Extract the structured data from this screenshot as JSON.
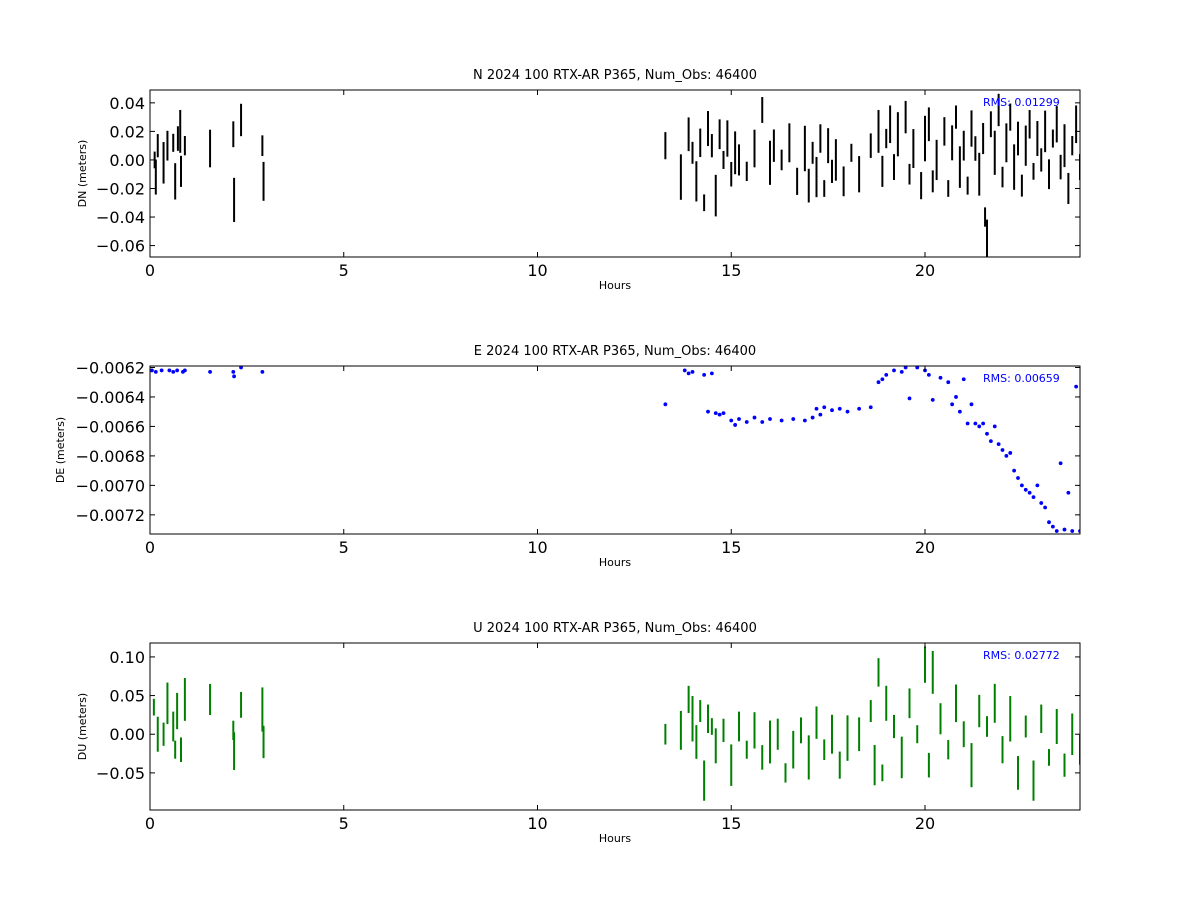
{
  "chart_data": [
    {
      "type": "scatter",
      "title": "N 2024 100 RTX-AR  P365, Num_Obs: 46400",
      "xlabel": "Hours",
      "ylabel": "DN (meters)",
      "xlim": [
        0,
        24
      ],
      "ylim": [
        -0.068,
        0.049
      ],
      "xticks": [
        0,
        5,
        10,
        15,
        20
      ],
      "yticks": [
        0.04,
        0.02,
        0.0,
        -0.02,
        -0.04,
        -0.06
      ],
      "ytick_labels": [
        "0.04",
        "0.02",
        "0.00",
        "−0.02",
        "−0.04",
        "−0.06"
      ],
      "rms_text": "RMS:  0.01299",
      "color": "#000000",
      "marker": "vertical-line",
      "points": [
        [
          0.12,
          0.0
        ],
        [
          0.15,
          -0.012
        ],
        [
          0.2,
          0.01
        ],
        [
          0.35,
          -0.002
        ],
        [
          0.45,
          0.01
        ],
        [
          0.6,
          0.012
        ],
        [
          0.65,
          -0.015
        ],
        [
          0.72,
          0.015
        ],
        [
          0.78,
          0.02
        ],
        [
          0.8,
          -0.008
        ],
        [
          0.9,
          0.01
        ],
        [
          1.55,
          0.008
        ],
        [
          2.15,
          0.018
        ],
        [
          2.17,
          -0.028
        ],
        [
          2.35,
          0.028
        ],
        [
          2.9,
          0.01
        ],
        [
          2.93,
          -0.015
        ],
        [
          13.3,
          0.01
        ],
        [
          13.7,
          -0.012
        ],
        [
          13.9,
          0.018
        ],
        [
          14.0,
          0.005
        ],
        [
          14.1,
          -0.015
        ],
        [
          14.2,
          0.012
        ],
        [
          14.3,
          -0.03
        ],
        [
          14.4,
          0.022
        ],
        [
          14.5,
          0.01
        ],
        [
          14.6,
          -0.025
        ],
        [
          14.7,
          0.018
        ],
        [
          14.8,
          0.0
        ],
        [
          14.9,
          0.015
        ],
        [
          15.0,
          -0.01
        ],
        [
          15.1,
          0.005
        ],
        [
          15.2,
          0.0
        ],
        [
          15.4,
          -0.008
        ],
        [
          15.6,
          0.008
        ],
        [
          15.8,
          0.035
        ],
        [
          16.0,
          -0.002
        ],
        [
          16.1,
          0.01
        ],
        [
          16.3,
          0.0
        ],
        [
          16.5,
          0.012
        ],
        [
          16.7,
          -0.015
        ],
        [
          16.9,
          0.008
        ],
        [
          17.0,
          -0.018
        ],
        [
          17.1,
          0.005
        ],
        [
          17.2,
          -0.012
        ],
        [
          17.3,
          0.015
        ],
        [
          17.4,
          -0.02
        ],
        [
          17.5,
          0.01
        ],
        [
          17.6,
          -0.008
        ],
        [
          17.7,
          0.0
        ],
        [
          17.9,
          -0.015
        ],
        [
          18.1,
          0.005
        ],
        [
          18.3,
          -0.01
        ],
        [
          18.6,
          0.01
        ],
        [
          18.8,
          0.02
        ],
        [
          18.9,
          -0.008
        ],
        [
          19.0,
          0.015
        ],
        [
          19.1,
          0.025
        ],
        [
          19.2,
          -0.005
        ],
        [
          19.3,
          0.018
        ],
        [
          19.5,
          0.03
        ],
        [
          19.6,
          -0.01
        ],
        [
          19.7,
          0.008
        ],
        [
          19.9,
          -0.018
        ],
        [
          20.0,
          0.015
        ],
        [
          20.1,
          0.025
        ],
        [
          20.2,
          -0.015
        ],
        [
          20.3,
          0.0
        ],
        [
          20.5,
          0.02
        ],
        [
          20.6,
          -0.02
        ],
        [
          20.7,
          0.012
        ],
        [
          20.8,
          0.03
        ],
        [
          20.9,
          -0.005
        ],
        [
          21.0,
          0.01
        ],
        [
          21.1,
          -0.018
        ],
        [
          21.2,
          0.022
        ],
        [
          21.3,
          0.008
        ],
        [
          21.4,
          -0.01
        ],
        [
          21.5,
          0.015
        ],
        [
          21.55,
          -0.04
        ],
        [
          21.6,
          -0.055
        ],
        [
          21.7,
          0.025
        ],
        [
          21.8,
          0.005
        ],
        [
          21.9,
          0.035
        ],
        [
          22.0,
          -0.012
        ],
        [
          22.1,
          0.012
        ],
        [
          22.2,
          0.03
        ],
        [
          22.3,
          -0.005
        ],
        [
          22.4,
          0.015
        ],
        [
          22.5,
          -0.018
        ],
        [
          22.6,
          0.01
        ],
        [
          22.7,
          0.025
        ],
        [
          22.8,
          -0.008
        ],
        [
          22.9,
          0.015
        ],
        [
          23.0,
          0.0
        ],
        [
          23.1,
          0.02
        ],
        [
          23.2,
          -0.01
        ],
        [
          23.3,
          0.015
        ],
        [
          23.4,
          0.025
        ],
        [
          23.5,
          -0.005
        ],
        [
          23.6,
          0.01
        ],
        [
          23.7,
          -0.02
        ],
        [
          23.8,
          0.01
        ],
        [
          23.9,
          0.025
        ],
        [
          24.0,
          -0.005
        ]
      ]
    },
    {
      "type": "scatter",
      "title": "E 2024 100 RTX-AR  P365, Num_Obs: 46400",
      "xlabel": "Hours",
      "ylabel": "DE (meters)",
      "xlim": [
        0,
        24
      ],
      "ylim": [
        -0.00733,
        -0.00619
      ],
      "xticks": [
        0,
        5,
        10,
        15,
        20
      ],
      "yticks": [
        -0.0062,
        -0.0064,
        -0.0066,
        -0.0068,
        -0.007,
        -0.0072
      ],
      "ytick_labels": [
        "−0.0062",
        "−0.0064",
        "−0.0066",
        "−0.0068",
        "−0.0070",
        "−0.0072"
      ],
      "rms_text": "RMS:  0.00659",
      "color": "#0000ff",
      "marker": "dot",
      "points": [
        [
          0.05,
          -0.00622
        ],
        [
          0.15,
          -0.00623
        ],
        [
          0.3,
          -0.00622
        ],
        [
          0.5,
          -0.00622
        ],
        [
          0.6,
          -0.00623
        ],
        [
          0.7,
          -0.00622
        ],
        [
          0.85,
          -0.00623
        ],
        [
          0.9,
          -0.00622
        ],
        [
          1.55,
          -0.00623
        ],
        [
          2.15,
          -0.00623
        ],
        [
          2.17,
          -0.00626
        ],
        [
          2.35,
          -0.0062
        ],
        [
          2.9,
          -0.00623
        ],
        [
          13.3,
          -0.00645
        ],
        [
          13.8,
          -0.00622
        ],
        [
          13.9,
          -0.00624
        ],
        [
          14.0,
          -0.00623
        ],
        [
          14.3,
          -0.00625
        ],
        [
          14.4,
          -0.0065
        ],
        [
          14.5,
          -0.00624
        ],
        [
          14.6,
          -0.00651
        ],
        [
          14.7,
          -0.00652
        ],
        [
          14.8,
          -0.00651
        ],
        [
          15.0,
          -0.00656
        ],
        [
          15.1,
          -0.00659
        ],
        [
          15.2,
          -0.00655
        ],
        [
          15.4,
          -0.00657
        ],
        [
          15.6,
          -0.00654
        ],
        [
          15.8,
          -0.00657
        ],
        [
          16.0,
          -0.00655
        ],
        [
          16.3,
          -0.00656
        ],
        [
          16.6,
          -0.00655
        ],
        [
          16.9,
          -0.00656
        ],
        [
          17.1,
          -0.00654
        ],
        [
          17.2,
          -0.00648
        ],
        [
          17.3,
          -0.00652
        ],
        [
          17.4,
          -0.00647
        ],
        [
          17.6,
          -0.00649
        ],
        [
          17.8,
          -0.00648
        ],
        [
          18.0,
          -0.0065
        ],
        [
          18.3,
          -0.00648
        ],
        [
          18.6,
          -0.00647
        ],
        [
          18.8,
          -0.0063
        ],
        [
          18.9,
          -0.00628
        ],
        [
          19.0,
          -0.00625
        ],
        [
          19.2,
          -0.00622
        ],
        [
          19.4,
          -0.00623
        ],
        [
          19.5,
          -0.0062
        ],
        [
          19.6,
          -0.00641
        ],
        [
          19.8,
          -0.0062
        ],
        [
          20.0,
          -0.00622
        ],
        [
          20.1,
          -0.00625
        ],
        [
          20.2,
          -0.00642
        ],
        [
          20.4,
          -0.00627
        ],
        [
          20.6,
          -0.0063
        ],
        [
          20.7,
          -0.00645
        ],
        [
          20.8,
          -0.0064
        ],
        [
          20.9,
          -0.0065
        ],
        [
          21.0,
          -0.00628
        ],
        [
          21.1,
          -0.00658
        ],
        [
          21.2,
          -0.00645
        ],
        [
          21.3,
          -0.00658
        ],
        [
          21.4,
          -0.0066
        ],
        [
          21.5,
          -0.00658
        ],
        [
          21.6,
          -0.00665
        ],
        [
          21.7,
          -0.0067
        ],
        [
          21.8,
          -0.0066
        ],
        [
          21.9,
          -0.00672
        ],
        [
          22.0,
          -0.00676
        ],
        [
          22.1,
          -0.0068
        ],
        [
          22.2,
          -0.00678
        ],
        [
          22.3,
          -0.0069
        ],
        [
          22.4,
          -0.00695
        ],
        [
          22.5,
          -0.007
        ],
        [
          22.6,
          -0.00703
        ],
        [
          22.7,
          -0.00705
        ],
        [
          22.8,
          -0.00708
        ],
        [
          22.9,
          -0.007
        ],
        [
          23.0,
          -0.00712
        ],
        [
          23.1,
          -0.00715
        ],
        [
          23.2,
          -0.00725
        ],
        [
          23.3,
          -0.00728
        ],
        [
          23.4,
          -0.00731
        ],
        [
          23.5,
          -0.00685
        ],
        [
          23.6,
          -0.0073
        ],
        [
          23.7,
          -0.00705
        ],
        [
          23.8,
          -0.00731
        ],
        [
          23.9,
          -0.00633
        ],
        [
          24.0,
          -0.00731
        ]
      ]
    },
    {
      "type": "scatter",
      "title": "U 2024 100 RTX-AR  P365, Num_Obs: 46400",
      "xlabel": "Hours",
      "ylabel": "DU (meters)",
      "xlim": [
        0,
        24
      ],
      "ylim": [
        -0.098,
        0.118
      ],
      "xticks": [
        0,
        5,
        10,
        15,
        20
      ],
      "yticks": [
        0.1,
        0.05,
        0.0,
        -0.05
      ],
      "ytick_labels": [
        "0.10",
        "0.05",
        "0.00",
        "−0.05"
      ],
      "rms_text": "RMS:  0.02772",
      "color": "#008000",
      "marker": "vertical-line",
      "points": [
        [
          0.1,
          0.035
        ],
        [
          0.2,
          0.0
        ],
        [
          0.35,
          0.0
        ],
        [
          0.45,
          0.04
        ],
        [
          0.6,
          0.01
        ],
        [
          0.65,
          -0.02
        ],
        [
          0.7,
          0.03
        ],
        [
          0.8,
          -0.02
        ],
        [
          0.9,
          0.045
        ],
        [
          1.55,
          0.045
        ],
        [
          2.15,
          0.005
        ],
        [
          2.17,
          -0.022
        ],
        [
          2.35,
          0.038
        ],
        [
          2.9,
          0.032
        ],
        [
          2.93,
          -0.01
        ],
        [
          13.3,
          0.0
        ],
        [
          13.7,
          0.005
        ],
        [
          13.9,
          0.045
        ],
        [
          14.0,
          0.02
        ],
        [
          14.1,
          -0.01
        ],
        [
          14.2,
          0.03
        ],
        [
          14.3,
          -0.06
        ],
        [
          14.4,
          0.02
        ],
        [
          14.5,
          0.01
        ],
        [
          14.6,
          -0.015
        ],
        [
          14.8,
          0.005
        ],
        [
          15.0,
          -0.04
        ],
        [
          15.2,
          0.01
        ],
        [
          15.4,
          -0.02
        ],
        [
          15.6,
          0.005
        ],
        [
          15.8,
          -0.03
        ],
        [
          16.0,
          -0.01
        ],
        [
          16.2,
          0.0
        ],
        [
          16.4,
          -0.05
        ],
        [
          16.6,
          -0.02
        ],
        [
          16.8,
          0.005
        ],
        [
          17.0,
          -0.03
        ],
        [
          17.2,
          0.015
        ],
        [
          17.4,
          -0.02
        ],
        [
          17.6,
          0.0
        ],
        [
          17.8,
          -0.04
        ],
        [
          18.0,
          -0.005
        ],
        [
          18.3,
          0.0
        ],
        [
          18.6,
          0.03
        ],
        [
          18.7,
          -0.04
        ],
        [
          18.8,
          0.08
        ],
        [
          18.9,
          -0.05
        ],
        [
          19.0,
          0.04
        ],
        [
          19.2,
          0.01
        ],
        [
          19.4,
          -0.03
        ],
        [
          19.6,
          0.04
        ],
        [
          19.8,
          0.0
        ],
        [
          20.0,
          0.09
        ],
        [
          20.1,
          -0.04
        ],
        [
          20.2,
          0.08
        ],
        [
          20.4,
          0.02
        ],
        [
          20.6,
          -0.02
        ],
        [
          20.8,
          0.04
        ],
        [
          21.0,
          0.0
        ],
        [
          21.2,
          -0.04
        ],
        [
          21.4,
          0.03
        ],
        [
          21.6,
          0.01
        ],
        [
          21.8,
          0.04
        ],
        [
          22.0,
          -0.02
        ],
        [
          22.2,
          0.02
        ],
        [
          22.4,
          -0.05
        ],
        [
          22.6,
          0.01
        ],
        [
          22.8,
          -0.06
        ],
        [
          23.0,
          0.02
        ],
        [
          23.2,
          -0.03
        ],
        [
          23.4,
          0.01
        ],
        [
          23.6,
          -0.04
        ],
        [
          23.8,
          0.0
        ],
        [
          24.0,
          -0.02
        ]
      ]
    }
  ]
}
